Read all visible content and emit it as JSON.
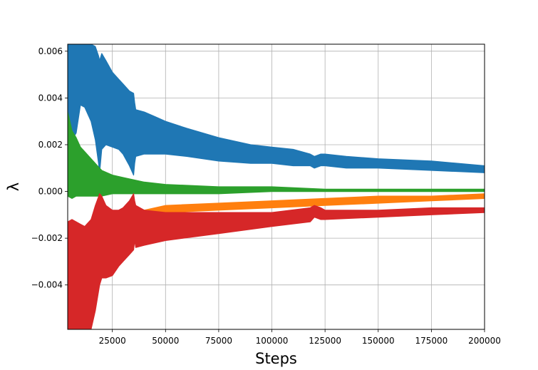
{
  "chart_data": {
    "type": "line",
    "title": "",
    "xlabel": "Steps",
    "ylabel": "λ",
    "xlim": [
      4000,
      200000
    ],
    "ylim": [
      -0.0059,
      0.0063
    ],
    "grid": true,
    "x_ticks": [
      25000,
      50000,
      75000,
      100000,
      125000,
      150000,
      175000,
      200000
    ],
    "x_tick_labels": [
      "25000",
      "50000",
      "75000",
      "100000",
      "125000",
      "150000",
      "175000",
      "200000"
    ],
    "y_ticks": [
      -0.004,
      -0.002,
      0.0,
      0.002,
      0.004,
      0.006
    ],
    "y_tick_labels": [
      "−0.004",
      "−0.002",
      "0.000",
      "0.002",
      "0.004",
      "0.006"
    ],
    "series": [
      {
        "color": "#1f77b4",
        "x": [
          4000,
          6000,
          8000,
          10000,
          12000,
          15000,
          17000,
          18500,
          19000,
          20000,
          22000,
          25000,
          28000,
          30000,
          33000,
          35000,
          35500,
          36000,
          40000,
          45000,
          50000,
          60000,
          75000,
          90000,
          100000,
          110000,
          118000,
          120000,
          123000,
          125000,
          135000,
          150000,
          175000,
          200000
        ],
        "upper": [
          0.0063,
          0.0063,
          0.0063,
          0.0063,
          0.0063,
          0.0063,
          0.0062,
          0.0058,
          0.0056,
          0.0059,
          0.0056,
          0.0051,
          0.0048,
          0.0046,
          0.0043,
          0.0042,
          0.0038,
          0.0035,
          0.0034,
          0.0032,
          0.003,
          0.0027,
          0.0023,
          0.002,
          0.0019,
          0.0018,
          0.0016,
          0.0015,
          0.0016,
          0.0016,
          0.0015,
          0.0014,
          0.0013,
          0.0011
        ],
        "lower": [
          0.003,
          0.0022,
          0.0025,
          0.0037,
          0.0036,
          0.003,
          0.0022,
          0.0012,
          0.0008,
          0.0018,
          0.002,
          0.0019,
          0.0018,
          0.0016,
          0.0011,
          0.0007,
          0.0012,
          0.0015,
          0.0016,
          0.0016,
          0.0016,
          0.0015,
          0.0013,
          0.0012,
          0.0012,
          0.0011,
          0.0011,
          0.001,
          0.0011,
          0.0011,
          0.001,
          0.001,
          0.0009,
          0.0008
        ]
      },
      {
        "color": "#ff7f0e",
        "x": [
          40000,
          50000,
          75000,
          100000,
          125000,
          150000,
          175000,
          200000
        ],
        "upper": [
          -0.0008,
          -0.0006,
          -0.0005,
          -0.0004,
          -0.0003,
          -0.0002,
          -0.0002,
          -0.0001
        ],
        "lower": [
          -0.0009,
          -0.0009,
          -0.0008,
          -0.0007,
          -0.0006,
          -0.0005,
          -0.0004,
          -0.0003
        ]
      },
      {
        "color": "#2ca02c",
        "x": [
          4000,
          6000,
          8000,
          10000,
          12000,
          15000,
          18000,
          20000,
          25000,
          30000,
          40000,
          50000,
          75000,
          100000,
          125000,
          150000,
          175000,
          200000
        ],
        "upper": [
          0.0034,
          0.0026,
          0.0023,
          0.0019,
          0.0017,
          0.0014,
          0.0011,
          0.0009,
          0.0007,
          0.0006,
          0.0004,
          0.0003,
          0.0002,
          0.0002,
          0.0001,
          0.0001,
          0.0001,
          0.0001
        ],
        "lower": [
          -0.0002,
          -0.0003,
          -0.0002,
          -0.0002,
          -0.0002,
          -0.0002,
          -0.0002,
          -0.0002,
          -0.0001,
          -0.0001,
          -0.0001,
          -0.0001,
          -0.0001,
          0.0,
          0.0,
          0.0,
          0.0,
          0.0
        ]
      },
      {
        "color": "#d62728",
        "x": [
          4000,
          6000,
          8000,
          10000,
          12000,
          15000,
          17000,
          19000,
          20000,
          22000,
          25000,
          28000,
          30000,
          33000,
          35000,
          35500,
          36000,
          40000,
          50000,
          75000,
          100000,
          118000,
          120000,
          123000,
          125000,
          150000,
          175000,
          200000
        ],
        "upper": [
          -0.0013,
          -0.0012,
          -0.0013,
          -0.0014,
          -0.0015,
          -0.0012,
          -0.0006,
          -0.0001,
          -0.0002,
          -0.0006,
          -0.0008,
          -0.0008,
          -0.0007,
          -0.0004,
          -0.0001,
          -0.0004,
          -0.0006,
          -0.0008,
          -0.0009,
          -0.0009,
          -0.0009,
          -0.0007,
          -0.0006,
          -0.0007,
          -0.0008,
          -0.0008,
          -0.0007,
          -0.0007
        ],
        "lower": [
          -0.0059,
          -0.0059,
          -0.0059,
          -0.0059,
          -0.0059,
          -0.0059,
          -0.0051,
          -0.004,
          -0.0037,
          -0.0037,
          -0.0036,
          -0.0032,
          -0.003,
          -0.0027,
          -0.0025,
          -0.0021,
          -0.0024,
          -0.0023,
          -0.0021,
          -0.0018,
          -0.0015,
          -0.0013,
          -0.0011,
          -0.0012,
          -0.0012,
          -0.0011,
          -0.001,
          -0.0009
        ]
      }
    ]
  }
}
